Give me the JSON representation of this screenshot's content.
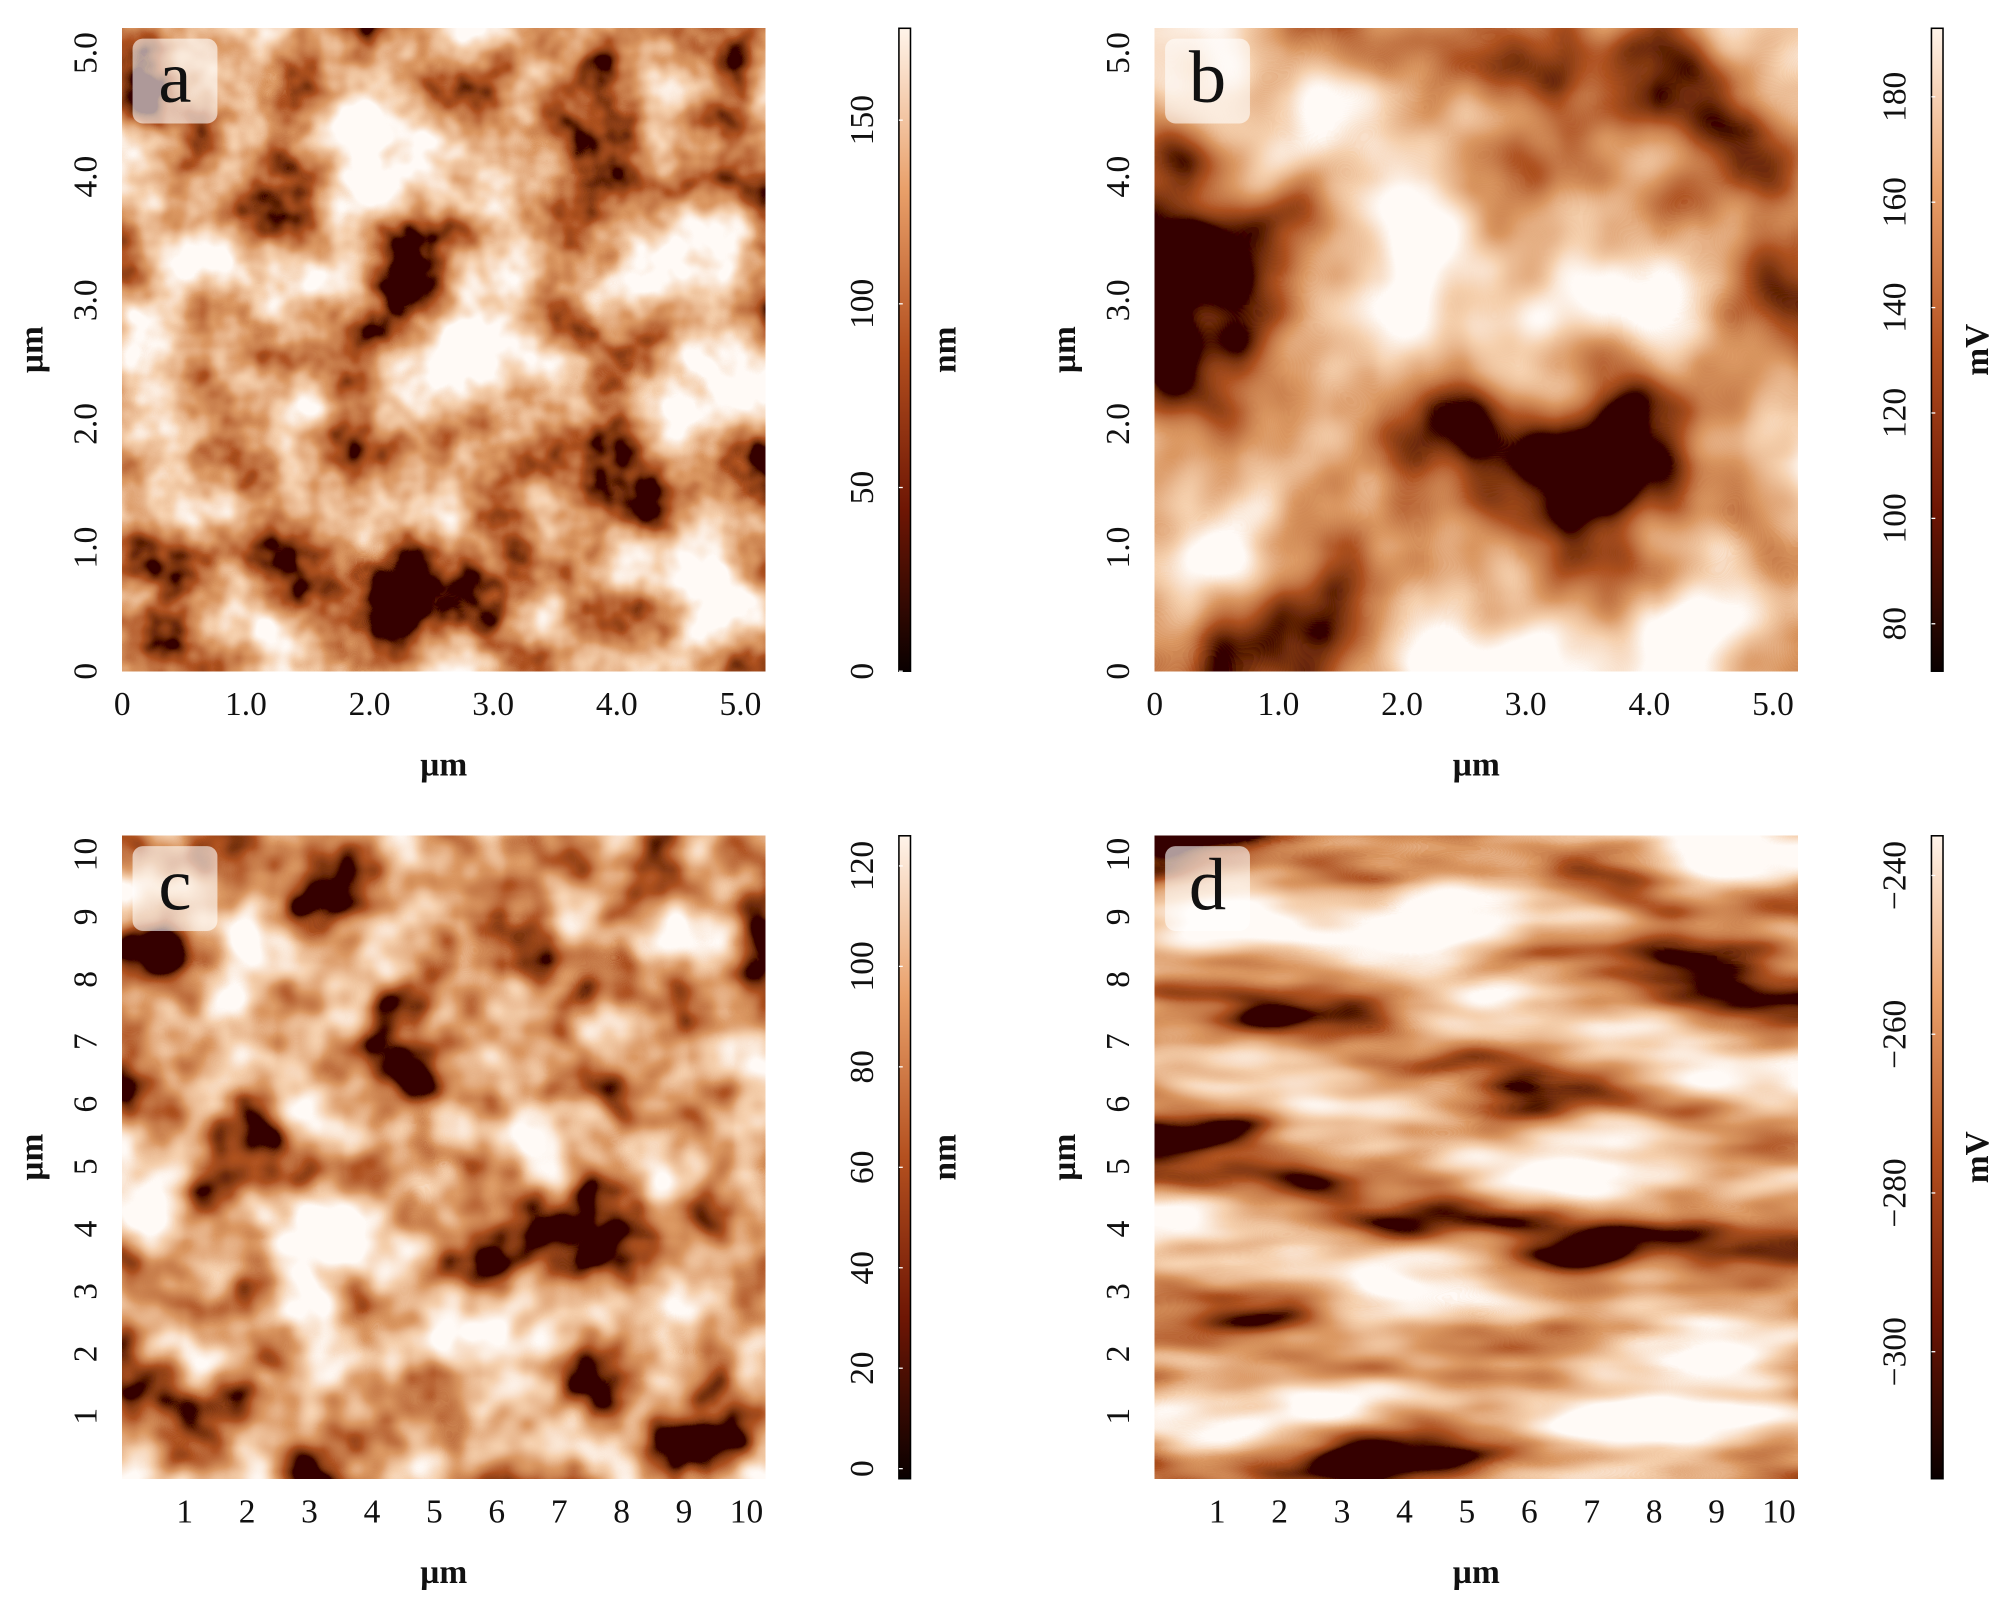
{
  "chart_data": [
    {
      "type": "heatmap",
      "panel": "a",
      "xlabel": "µm",
      "ylabel": "µm",
      "xlim": [
        0,
        5.2
      ],
      "ylim": [
        0,
        5.2
      ],
      "xticks": [
        0,
        {
          "value": 1,
          "label": "1.0"
        },
        {
          "value": 2,
          "label": "2.0"
        },
        {
          "value": 3,
          "label": "3.0"
        },
        {
          "value": 4,
          "label": "4.0"
        },
        {
          "value": 5,
          "label": "5.0"
        }
      ],
      "yticks": [
        0,
        {
          "value": 1,
          "label": "1.0"
        },
        {
          "value": 2,
          "label": "2.0"
        },
        {
          "value": 3,
          "label": "3.0"
        },
        {
          "value": 4,
          "label": "4.0"
        },
        {
          "value": 5,
          "label": "5.0"
        }
      ],
      "colorbar_label": "nm",
      "clim": [
        0,
        175
      ],
      "cticks": [
        0,
        50,
        100,
        150
      ],
      "colormap": [
        "#0a0000",
        "#6e1604",
        "#b4501f",
        "#e9a06a",
        "#fff4ea"
      ]
    },
    {
      "type": "heatmap",
      "panel": "b",
      "xlabel": "µm",
      "ylabel": "µm",
      "xlim": [
        0,
        5.2
      ],
      "ylim": [
        0,
        5.2
      ],
      "xticks": [
        0,
        {
          "value": 1,
          "label": "1.0"
        },
        {
          "value": 2,
          "label": "2.0"
        },
        {
          "value": 3,
          "label": "3.0"
        },
        {
          "value": 4,
          "label": "4.0"
        },
        {
          "value": 5,
          "label": "5.0"
        }
      ],
      "yticks": [
        0,
        {
          "value": 1,
          "label": "1.0"
        },
        {
          "value": 2,
          "label": "2.0"
        },
        {
          "value": 3,
          "label": "3.0"
        },
        {
          "value": 4,
          "label": "4.0"
        },
        {
          "value": 5,
          "label": "5.0"
        }
      ],
      "colorbar_label": "mV",
      "clim": [
        71,
        193
      ],
      "cticks": [
        80,
        100,
        120,
        140,
        160,
        180
      ],
      "colormap": [
        "#0a0000",
        "#6e1604",
        "#b4501f",
        "#e9a06a",
        "#fff4ea"
      ]
    },
    {
      "type": "heatmap",
      "panel": "c",
      "xlabel": "µm",
      "ylabel": "µm",
      "xlim": [
        0,
        10.3
      ],
      "ylim": [
        0,
        10.3
      ],
      "xticks": [
        1,
        2,
        3,
        4,
        5,
        6,
        7,
        8,
        9,
        10
      ],
      "yticks": [
        1,
        2,
        3,
        4,
        5,
        6,
        7,
        8,
        9,
        10
      ],
      "colorbar_label": "nm",
      "clim": [
        -2,
        126
      ],
      "cticks": [
        0,
        20,
        40,
        60,
        80,
        100,
        120
      ],
      "colormap": [
        "#0a0000",
        "#6e1604",
        "#b4501f",
        "#e9a06a",
        "#fff4ea"
      ]
    },
    {
      "type": "heatmap",
      "panel": "d",
      "xlabel": "µm",
      "ylabel": "µm",
      "xlim": [
        0,
        10.3
      ],
      "ylim": [
        0,
        10.3
      ],
      "xticks": [
        1,
        2,
        3,
        4,
        5,
        6,
        7,
        8,
        9,
        10
      ],
      "yticks": [
        1,
        2,
        3,
        4,
        5,
        6,
        7,
        8,
        9,
        10
      ],
      "colorbar_label": "mV",
      "clim": [
        -316,
        -235
      ],
      "cticks": [
        {
          "value": -300,
          "label": "−300"
        },
        {
          "value": -280,
          "label": "−280"
        },
        {
          "value": -260,
          "label": "−260"
        },
        {
          "value": -240,
          "label": "−240"
        }
      ],
      "colormap": [
        "#0a0000",
        "#6e1604",
        "#b4501f",
        "#e9a06a",
        "#fff4ea"
      ]
    }
  ]
}
